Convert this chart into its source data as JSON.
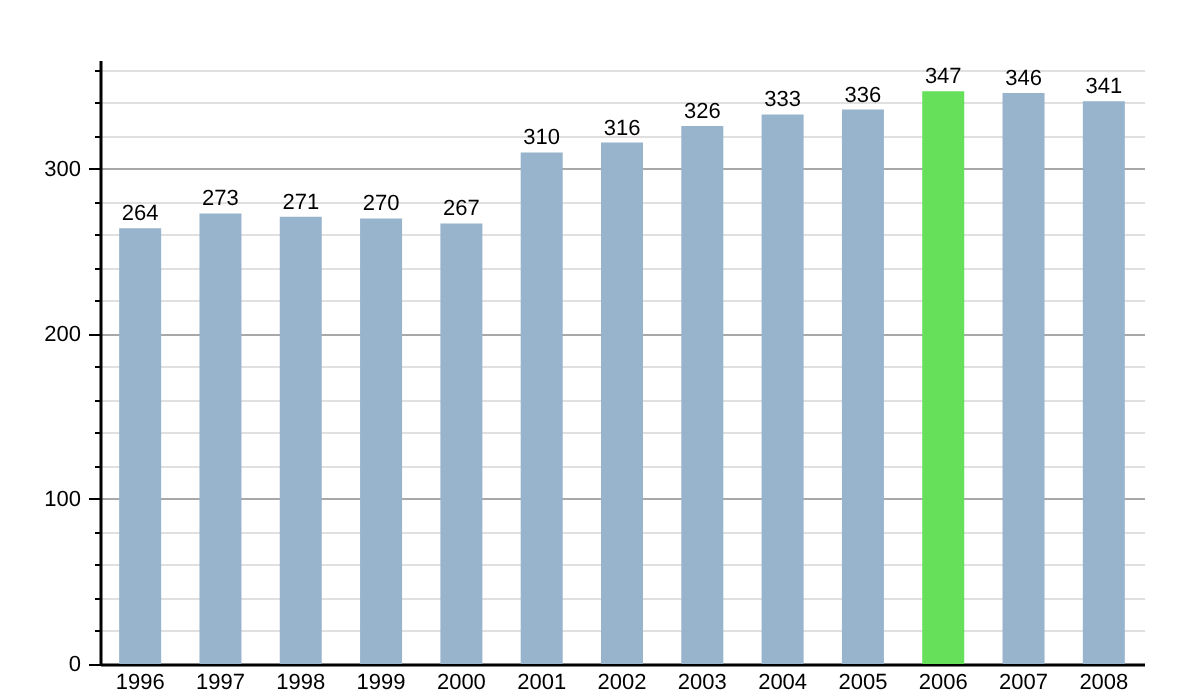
{
  "chart_data": {
    "type": "bar",
    "categories": [
      "1996",
      "1997",
      "1998",
      "1999",
      "2000",
      "2001",
      "2002",
      "2003",
      "2004",
      "2005",
      "2006",
      "2007",
      "2008"
    ],
    "values": [
      264,
      273,
      271,
      270,
      267,
      310,
      316,
      326,
      333,
      336,
      347,
      346,
      341
    ],
    "colors": [
      "#98b3cc",
      "#98b3cc",
      "#98b3cc",
      "#98b3cc",
      "#98b3cc",
      "#98b3cc",
      "#98b3cc",
      "#98b3cc",
      "#98b3cc",
      "#98b3cc",
      "#66e05a",
      "#98b3cc",
      "#98b3cc"
    ],
    "ylim": [
      0,
      366
    ],
    "yticks": [
      0,
      {
        "value": 20,
        "label": null
      },
      {
        "value": 40,
        "label": null
      },
      {
        "value": 60,
        "label": null
      },
      {
        "value": 80,
        "label": null
      },
      100,
      {
        "value": 120,
        "label": null
      },
      {
        "value": 140,
        "label": null
      },
      {
        "value": 160,
        "label": null
      },
      {
        "value": 180,
        "label": null
      },
      200,
      {
        "value": 220,
        "label": null
      },
      {
        "value": 240,
        "label": null
      },
      {
        "value": 260,
        "label": null
      },
      {
        "value": 280,
        "label": null
      },
      300,
      {
        "value": 320,
        "label": null
      },
      {
        "value": 340,
        "label": null
      },
      {
        "value": 360,
        "label": null
      }
    ],
    "grid": true,
    "data_labels": true
  }
}
